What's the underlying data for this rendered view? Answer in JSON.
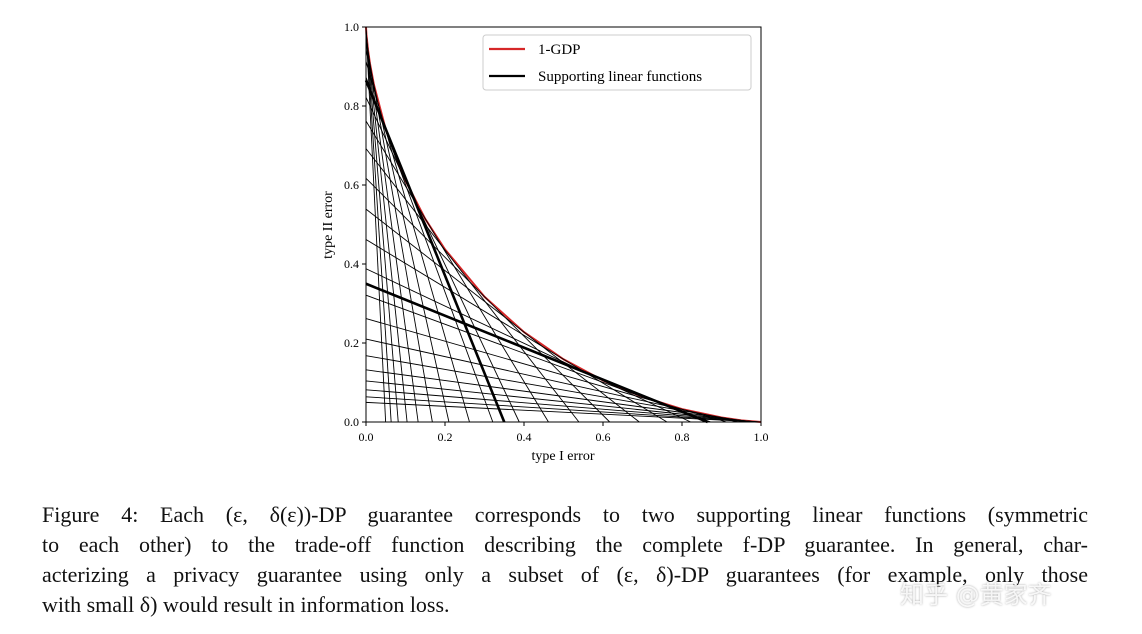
{
  "chart_data": {
    "type": "line",
    "xlabel": "type I error",
    "ylabel": "type II error",
    "xlim": [
      0,
      1
    ],
    "ylim": [
      0,
      1
    ],
    "xticks": [
      {
        "value": 0,
        "label": "0.0"
      },
      {
        "value": 0.2,
        "label": "0.2"
      },
      {
        "value": 0.4,
        "label": "0.4"
      },
      {
        "value": 0.6,
        "label": "0.6"
      },
      {
        "value": 0.8,
        "label": "0.8"
      },
      {
        "value": 1,
        "label": "1.0"
      }
    ],
    "yticks": [
      {
        "value": 0,
        "label": "0.0"
      },
      {
        "value": 0.2,
        "label": "0.2"
      },
      {
        "value": 0.4,
        "label": "0.4"
      },
      {
        "value": 0.6,
        "label": "0.6"
      },
      {
        "value": 0.8,
        "label": "0.8"
      },
      {
        "value": 1,
        "label": "1.0"
      }
    ],
    "legend": "upper right",
    "series": [
      {
        "name": "1-GDP",
        "color": "#d62728",
        "x": [
          0,
          0.001,
          0.005,
          0.01,
          0.02,
          0.05,
          0.1,
          0.15,
          0.2,
          0.3,
          0.4,
          0.5,
          0.6,
          0.7,
          0.8,
          0.9,
          0.95,
          1
        ],
        "values": [
          1,
          0.9817,
          0.9425,
          0.9076,
          0.854,
          0.7405,
          0.611,
          0.514,
          0.437,
          0.317,
          0.2276,
          0.1587,
          0.105,
          0.0637,
          0.0328,
          0.0113,
          0.0041,
          0
        ]
      },
      {
        "name": "Supporting linear functions",
        "color": "#000000",
        "lines": [
          [
            0.617,
            0.617
          ],
          [
            0.692,
            0.539
          ],
          [
            0.539,
            0.692
          ],
          [
            0.762,
            0.462
          ],
          [
            0.462,
            0.762
          ],
          [
            0.822,
            0.388
          ],
          [
            0.388,
            0.822
          ],
          [
            0.873,
            0.321
          ],
          [
            0.321,
            0.873
          ],
          [
            0.913,
            0.262
          ],
          [
            0.262,
            0.913
          ],
          [
            0.943,
            0.21
          ],
          [
            0.21,
            0.943
          ],
          [
            0.965,
            0.168
          ],
          [
            0.168,
            0.965
          ],
          [
            0.979,
            0.132
          ],
          [
            0.132,
            0.979
          ],
          [
            0.988,
            0.104
          ],
          [
            0.104,
            0.988
          ],
          [
            0.994,
            0.0816
          ],
          [
            0.0816,
            0.994
          ],
          [
            0.997,
            0.0637
          ],
          [
            0.0637,
            0.997
          ],
          [
            0.998,
            0.0497
          ],
          [
            0.0497,
            0.998
          ]
        ],
        "bold_lines": [
          [
            0.865,
            0.35
          ],
          [
            0.35,
            0.865
          ]
        ]
      }
    ]
  },
  "caption": {
    "lines": [
      "Figure 4: Each (ε, δ(ε))-DP guarantee corresponds to two supporting linear functions (symmetric",
      "to each other) to the trade-off function describing the complete f-DP guarantee. In general, char-",
      "acterizing a privacy guarantee using only a subset of (ε, δ)-DP guarantees (for example, only those",
      "with small δ) would result in information loss."
    ]
  },
  "watermark": "知乎 @黄家齐"
}
